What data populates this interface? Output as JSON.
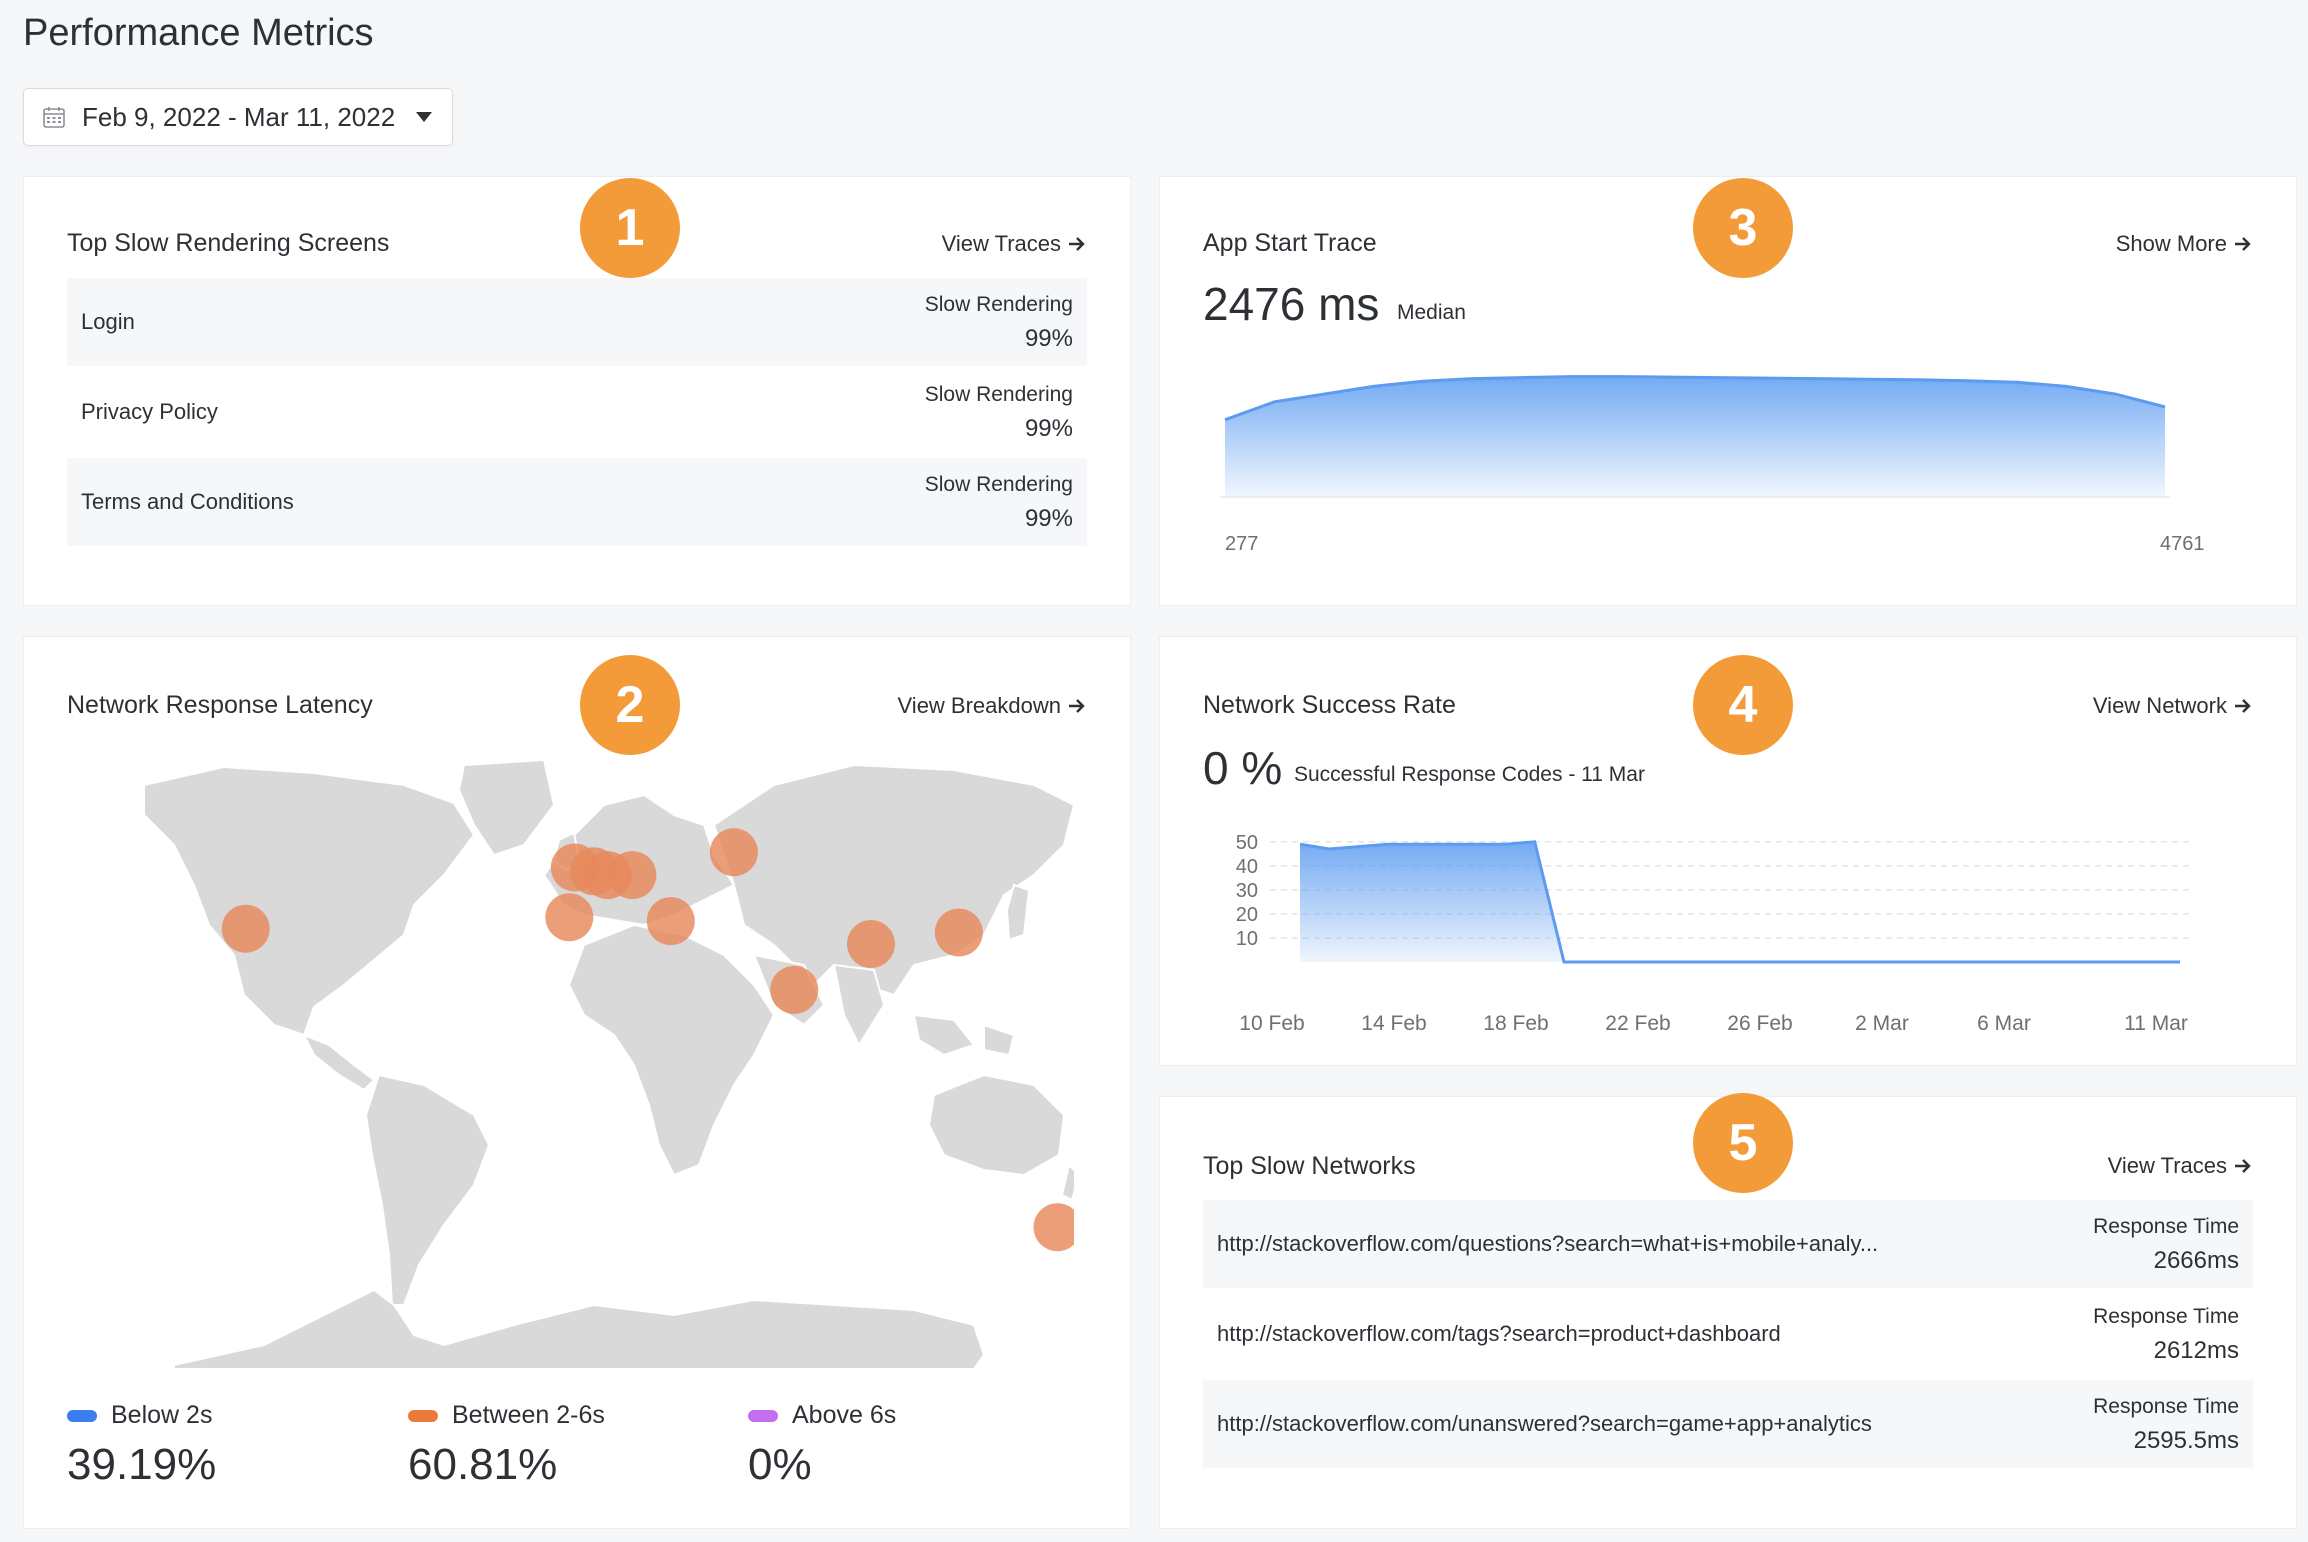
{
  "page": {
    "title": "Performance Metrics",
    "date_range": "Feb 9, 2022 - Mar 11, 2022"
  },
  "colors": {
    "badge": "#f29b38",
    "chart_blue": "#5b9bf0",
    "below": "#3a7ef0",
    "between": "#eb7a3b",
    "above": "#c46ef0",
    "map_land": "#d9d9d9",
    "map_bubble": "#e8895a"
  },
  "slow_screens": {
    "badge": "1",
    "title": "Top Slow Rendering Screens",
    "link": "View Traces",
    "rows": [
      {
        "name": "Login",
        "metric_label": "Slow Rendering",
        "metric_value": "99%"
      },
      {
        "name": "Privacy Policy",
        "metric_label": "Slow Rendering",
        "metric_value": "99%"
      },
      {
        "name": "Terms and Conditions",
        "metric_label": "Slow Rendering",
        "metric_value": "99%"
      }
    ]
  },
  "latency": {
    "badge": "2",
    "title": "Network Response Latency",
    "link": "View Breakdown",
    "legend": [
      {
        "label": "Below 2s",
        "value": "39.19%",
        "color": "#3a7ef0"
      },
      {
        "label": "Between 2-6s",
        "value": "60.81%",
        "color": "#eb7a3b"
      },
      {
        "label": "Above 6s",
        "value": "0%",
        "color": "#c46ef0"
      }
    ]
  },
  "app_start": {
    "badge": "3",
    "title": "App Start Trace",
    "link": "Show More",
    "value": "2476 ms",
    "sub": "Median",
    "min_label": "277",
    "max_label": "4761"
  },
  "success_rate": {
    "badge": "4",
    "title": "Network Success Rate",
    "link": "View Network",
    "value": "0 %",
    "sub": "Successful Response Codes - 11 Mar"
  },
  "slow_networks": {
    "badge": "5",
    "title": "Top Slow Networks",
    "link": "View Traces",
    "rows": [
      {
        "name": "http://stackoverflow.com/questions?search=what+is+mobile+analy...",
        "metric_label": "Response Time",
        "metric_value": "2666ms"
      },
      {
        "name": "http://stackoverflow.com/tags?search=product+dashboard",
        "metric_label": "Response Time",
        "metric_value": "2612ms"
      },
      {
        "name": "http://stackoverflow.com/unanswered?search=game+app+analytics",
        "metric_label": "Response Time",
        "metric_value": "2595.5ms"
      }
    ]
  },
  "chart_data": [
    {
      "type": "area",
      "y": [
        1500,
        1850,
        2000,
        2150,
        2250,
        2300,
        2320,
        2340,
        2340,
        2330,
        2320,
        2310,
        2300,
        2290,
        2280,
        2260,
        2230,
        2150,
        2000,
        1750
      ],
      "xlim": [
        277,
        4761
      ],
      "xlabel": "",
      "ylabel": ""
    },
    {
      "type": "area",
      "x_ticks": [
        "10 Feb",
        "14 Feb",
        "18 Feb",
        "22 Feb",
        "26 Feb",
        "2 Mar",
        "6 Mar",
        "11 Mar"
      ],
      "y_ticks": [
        "50",
        "40",
        "30",
        "20",
        "10"
      ],
      "ylim": [
        0,
        52
      ],
      "x": [
        0,
        1,
        2,
        3,
        4,
        5,
        6,
        7,
        8,
        9,
        30
      ],
      "y": [
        49,
        47,
        48,
        49,
        49,
        49,
        49,
        49,
        50,
        0,
        0
      ],
      "grid": true
    }
  ],
  "map_bubbles": [
    {
      "name": "california",
      "lon": -122,
      "lat": 37
    },
    {
      "name": "uk",
      "lon": -2,
      "lat": 53
    },
    {
      "name": "netherlands",
      "lon": 5,
      "lat": 52
    },
    {
      "name": "germany",
      "lon": 10,
      "lat": 51
    },
    {
      "name": "poland",
      "lon": 19,
      "lat": 51
    },
    {
      "name": "spain",
      "lon": -4,
      "lat": 40
    },
    {
      "name": "turkey",
      "lon": 33,
      "lat": 39
    },
    {
      "name": "russia",
      "lon": 56,
      "lat": 57
    },
    {
      "name": "india",
      "lon": 78,
      "lat": 21
    },
    {
      "name": "china",
      "lon": 106,
      "lat": 33
    },
    {
      "name": "japan",
      "lon": 138,
      "lat": 36
    },
    {
      "name": "new-zealand",
      "lon": 174,
      "lat": -41
    }
  ]
}
